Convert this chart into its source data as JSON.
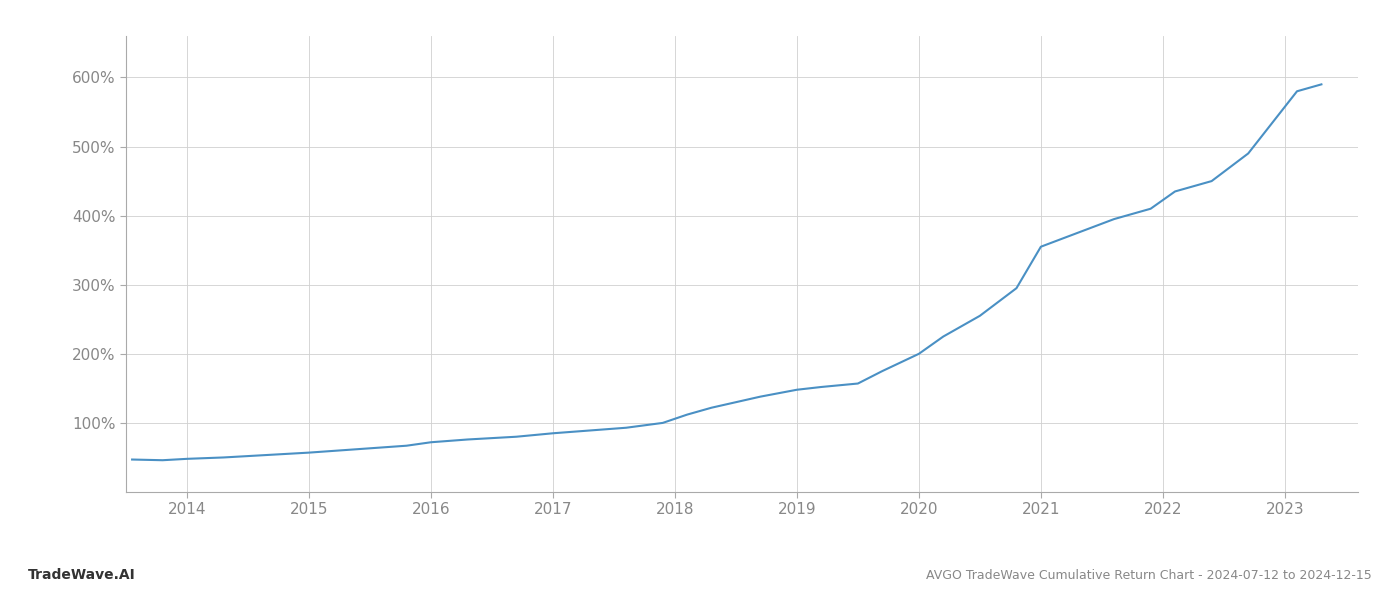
{
  "title": "AVGO TradeWave Cumulative Return Chart - 2024-07-12 to 2024-12-15",
  "watermark": "TradeWave.AI",
  "line_color": "#4a90c4",
  "background_color": "#ffffff",
  "grid_color": "#d0d0d0",
  "text_color": "#888888",
  "footer_text_color": "#333333",
  "x_labels": [
    "2014",
    "2015",
    "2016",
    "2017",
    "2018",
    "2019",
    "2020",
    "2021",
    "2022",
    "2023"
  ],
  "x_values": [
    2013.55,
    2013.8,
    2014.0,
    2014.3,
    2014.6,
    2015.0,
    2015.4,
    2015.8,
    2016.0,
    2016.3,
    2016.7,
    2017.0,
    2017.3,
    2017.6,
    2017.9,
    2018.1,
    2018.3,
    2018.5,
    2018.7,
    2019.0,
    2019.2,
    2019.5,
    2019.7,
    2020.0,
    2020.2,
    2020.5,
    2020.8,
    2021.0,
    2021.3,
    2021.6,
    2021.9,
    2022.1,
    2022.4,
    2022.7,
    2022.9,
    2023.1,
    2023.3
  ],
  "y_values": [
    47,
    46,
    48,
    50,
    53,
    57,
    62,
    67,
    72,
    76,
    80,
    85,
    89,
    93,
    100,
    112,
    122,
    130,
    138,
    148,
    152,
    157,
    175,
    200,
    225,
    255,
    295,
    355,
    375,
    395,
    410,
    435,
    450,
    490,
    535,
    580,
    590
  ],
  "yticks": [
    100,
    200,
    300,
    400,
    500,
    600
  ],
  "ylim": [
    0,
    660
  ],
  "xlim": [
    2013.5,
    2023.6
  ],
  "line_width": 1.5,
  "figsize": [
    14.0,
    6.0
  ],
  "dpi": 100
}
